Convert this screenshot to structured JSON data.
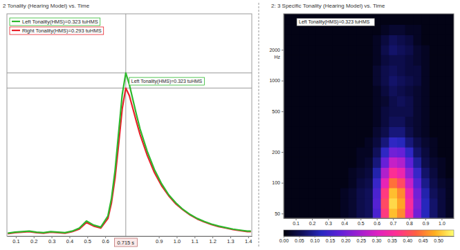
{
  "chart_data": [
    {
      "type": "line",
      "title": "2 Tonality (Hearing Model) vs. Time",
      "x": [
        0.055,
        0.095,
        0.135,
        0.175,
        0.215,
        0.255,
        0.295,
        0.335,
        0.375,
        0.415,
        0.455,
        0.495,
        0.535,
        0.575,
        0.615,
        0.635,
        0.655,
        0.675,
        0.695,
        0.715,
        0.735,
        0.755,
        0.775,
        0.795,
        0.835,
        0.875,
        0.915,
        0.955,
        0.995,
        1.035,
        1.075,
        1.115,
        1.155,
        1.195,
        1.235,
        1.275,
        1.315,
        1.355,
        1.395,
        1.415
      ],
      "series": [
        {
          "name": "Left Tonality(HMS)=0.323 tuHMS",
          "color": "#2db82d",
          "values": [
            0.006,
            0.008,
            0.009,
            0.01,
            0.008,
            0.007,
            0.009,
            0.008,
            0.007,
            0.01,
            0.016,
            0.03,
            0.022,
            0.018,
            0.04,
            0.075,
            0.13,
            0.205,
            0.28,
            0.323,
            0.3,
            0.27,
            0.24,
            0.212,
            0.168,
            0.132,
            0.104,
            0.082,
            0.066,
            0.053,
            0.043,
            0.035,
            0.029,
            0.024,
            0.02,
            0.017,
            0.014,
            0.012,
            0.01,
            0.01
          ]
        },
        {
          "name": "Right Tonality(HMS)=0.293 tuHMS",
          "color": "#e8202a",
          "values": [
            0.005,
            0.007,
            0.008,
            0.009,
            0.007,
            0.006,
            0.008,
            0.007,
            0.006,
            0.009,
            0.014,
            0.027,
            0.02,
            0.016,
            0.035,
            0.066,
            0.115,
            0.182,
            0.252,
            0.293,
            0.278,
            0.252,
            0.226,
            0.201,
            0.16,
            0.126,
            0.1,
            0.08,
            0.064,
            0.052,
            0.042,
            0.034,
            0.028,
            0.023,
            0.019,
            0.016,
            0.013,
            0.011,
            0.009,
            0.009
          ]
        }
      ],
      "xlim": [
        0.05,
        1.42
      ],
      "xticks": [
        0.1,
        0.2,
        0.3,
        0.4,
        0.5,
        0.6,
        0.9,
        {
          "value": 1,
          "label": "1.0"
        },
        1.1,
        1.2,
        1.3,
        1.4
      ],
      "ylim": [
        0,
        0.44
      ],
      "tick_labels": "x",
      "legend": "upper left",
      "cursor": {
        "x": 0.715,
        "label": "0.715 s"
      },
      "annotations": [
        {
          "text": "Left Tonality(HMS)=0.323 tuHMS",
          "x": 0.715,
          "y": 0.323
        }
      ]
    },
    {
      "type": "heatmap",
      "title": "2: 3 Specific Tonality (Hearing Model) vs. Time",
      "x": [
        0.05,
        0.1,
        0.15,
        0.2,
        0.25,
        0.3,
        0.35,
        0.4,
        0.45,
        0.5,
        0.55,
        0.6,
        0.65,
        0.7,
        0.75,
        0.8,
        0.85,
        0.9,
        0.95,
        1.0,
        1.05
      ],
      "y": [
        50,
        63,
        80,
        100,
        125,
        160,
        200,
        250,
        315,
        400,
        500,
        630,
        800,
        1000,
        1250,
        1600,
        2000,
        2500,
        3150,
        4000
      ],
      "z": [
        [
          0.01,
          0.01,
          0.01,
          0.01,
          0.01,
          0.01,
          0.01,
          0.02,
          0.03,
          0.05,
          0.06,
          0.16,
          0.38,
          0.5,
          0.46,
          0.34,
          0.2,
          0.12,
          0.07,
          0.04,
          0.02
        ],
        [
          0.01,
          0.01,
          0.01,
          0.01,
          0.01,
          0.01,
          0.01,
          0.02,
          0.03,
          0.05,
          0.06,
          0.17,
          0.4,
          0.52,
          0.48,
          0.35,
          0.21,
          0.12,
          0.07,
          0.04,
          0.02
        ],
        [
          0.01,
          0.01,
          0.01,
          0.01,
          0.01,
          0.01,
          0.01,
          0.02,
          0.03,
          0.05,
          0.06,
          0.16,
          0.38,
          0.5,
          0.46,
          0.33,
          0.2,
          0.11,
          0.06,
          0.04,
          0.02
        ],
        [
          0.01,
          0.01,
          0.01,
          0.01,
          0.01,
          0.01,
          0.01,
          0.01,
          0.02,
          0.04,
          0.05,
          0.14,
          0.32,
          0.44,
          0.4,
          0.28,
          0.17,
          0.09,
          0.05,
          0.03,
          0.02
        ],
        [
          0.01,
          0.01,
          0.01,
          0.01,
          0.01,
          0.01,
          0.01,
          0.01,
          0.02,
          0.03,
          0.04,
          0.11,
          0.26,
          0.36,
          0.33,
          0.23,
          0.14,
          0.07,
          0.04,
          0.02,
          0.01
        ],
        [
          0.01,
          0.01,
          0.01,
          0.01,
          0.01,
          0.01,
          0.01,
          0.01,
          0.01,
          0.02,
          0.03,
          0.08,
          0.19,
          0.28,
          0.26,
          0.18,
          0.1,
          0.05,
          0.03,
          0.02,
          0.01
        ],
        [
          0.01,
          0.01,
          0.01,
          0.01,
          0.01,
          0.01,
          0.01,
          0.01,
          0.01,
          0.02,
          0.02,
          0.06,
          0.13,
          0.2,
          0.19,
          0.13,
          0.07,
          0.04,
          0.02,
          0.01,
          0.01
        ],
        [
          0.01,
          0.01,
          0.01,
          0.01,
          0.01,
          0.01,
          0.01,
          0.01,
          0.01,
          0.01,
          0.02,
          0.04,
          0.08,
          0.13,
          0.12,
          0.08,
          0.05,
          0.03,
          0.02,
          0.01,
          0.01
        ],
        [
          0.01,
          0.01,
          0.01,
          0.01,
          0.01,
          0.01,
          0.01,
          0.01,
          0.01,
          0.01,
          0.01,
          0.03,
          0.05,
          0.08,
          0.08,
          0.05,
          0.03,
          0.02,
          0.01,
          0.01,
          0.01
        ],
        [
          0.01,
          0.01,
          0.01,
          0.01,
          0.01,
          0.01,
          0.01,
          0.01,
          0.01,
          0.01,
          0.01,
          0.02,
          0.04,
          0.06,
          0.06,
          0.04,
          0.03,
          0.02,
          0.01,
          0.01,
          0.01
        ],
        [
          0.01,
          0.01,
          0.01,
          0.01,
          0.01,
          0.01,
          0.01,
          0.01,
          0.01,
          0.01,
          0.01,
          0.02,
          0.04,
          0.05,
          0.05,
          0.05,
          0.03,
          0.02,
          0.01,
          0.01,
          0.01
        ],
        [
          0.01,
          0.01,
          0.01,
          0.01,
          0.01,
          0.01,
          0.01,
          0.01,
          0.01,
          0.01,
          0.01,
          0.02,
          0.03,
          0.05,
          0.06,
          0.05,
          0.03,
          0.02,
          0.01,
          0.01,
          0.01
        ],
        [
          0.01,
          0.01,
          0.01,
          0.01,
          0.01,
          0.01,
          0.01,
          0.01,
          0.01,
          0.01,
          0.01,
          0.02,
          0.04,
          0.06,
          0.05,
          0.04,
          0.03,
          0.02,
          0.01,
          0.01,
          0.01
        ],
        [
          0.01,
          0.01,
          0.01,
          0.01,
          0.01,
          0.01,
          0.01,
          0.01,
          0.01,
          0.01,
          0.01,
          0.03,
          0.05,
          0.07,
          0.06,
          0.05,
          0.04,
          0.02,
          0.01,
          0.01,
          0.01
        ],
        [
          0.01,
          0.01,
          0.01,
          0.01,
          0.01,
          0.01,
          0.01,
          0.01,
          0.01,
          0.01,
          0.01,
          0.03,
          0.05,
          0.06,
          0.05,
          0.04,
          0.04,
          0.02,
          0.01,
          0.01,
          0.01
        ],
        [
          0.01,
          0.01,
          0.01,
          0.01,
          0.01,
          0.01,
          0.01,
          0.01,
          0.01,
          0.01,
          0.01,
          0.02,
          0.04,
          0.05,
          0.05,
          0.04,
          0.03,
          0.02,
          0.01,
          0.01,
          0.01
        ],
        [
          0.01,
          0.01,
          0.01,
          0.01,
          0.01,
          0.01,
          0.01,
          0.01,
          0.01,
          0.01,
          0.01,
          0.02,
          0.05,
          0.07,
          0.06,
          0.05,
          0.03,
          0.02,
          0.01,
          0.01,
          0.01
        ],
        [
          0.01,
          0.01,
          0.01,
          0.01,
          0.01,
          0.01,
          0.01,
          0.01,
          0.01,
          0.01,
          0.01,
          0.02,
          0.04,
          0.06,
          0.05,
          0.04,
          0.02,
          0.01,
          0.01,
          0.01,
          0.01
        ],
        [
          0.01,
          0.01,
          0.01,
          0.01,
          0.01,
          0.01,
          0.01,
          0.01,
          0.01,
          0.01,
          0.01,
          0.01,
          0.02,
          0.03,
          0.03,
          0.02,
          0.02,
          0.01,
          0.01,
          0.01,
          0.01
        ],
        [
          0.01,
          0.01,
          0.01,
          0.01,
          0.01,
          0.01,
          0.01,
          0.01,
          0.01,
          0.01,
          0.01,
          0.01,
          0.01,
          0.01,
          0.01,
          0.01,
          0.01,
          0.01,
          0.01,
          0.01,
          0.01
        ]
      ],
      "xlim": [
        0.025,
        1.075
      ],
      "xticks": [
        0.1,
        0.2,
        0.3,
        0.4,
        0.5,
        0.6,
        0.7,
        0.8,
        0.9,
        {
          "value": 1,
          "label": "1.0"
        }
      ],
      "ylim": [
        45,
        4500
      ],
      "log": "y",
      "yticks": [
        50,
        100,
        200,
        500,
        1000,
        2000
      ],
      "y_label": "Hz",
      "colorbar": {
        "range": [
          0,
          0.55
        ],
        "ticks": [
          {
            "value": 0,
            "label": "0.00"
          },
          {
            "value": 0.05,
            "label": "0.05"
          },
          {
            "value": 0.1,
            "label": "0.10"
          },
          {
            "value": 0.15,
            "label": "0.15"
          },
          {
            "value": 0.2,
            "label": "0.20"
          },
          {
            "value": 0.25,
            "label": "0.25"
          },
          {
            "value": 0.3,
            "label": "0.30"
          },
          {
            "value": 0.35,
            "label": "0.35"
          },
          {
            "value": 0.4,
            "label": "0.40"
          },
          {
            "value": 0.45,
            "label": "0.45"
          },
          {
            "value": 0.5,
            "label": "0.50"
          }
        ]
      },
      "annotations": [
        {
          "text": "Left Tonality(HMS)=0.323 tuHMS"
        }
      ]
    }
  ]
}
